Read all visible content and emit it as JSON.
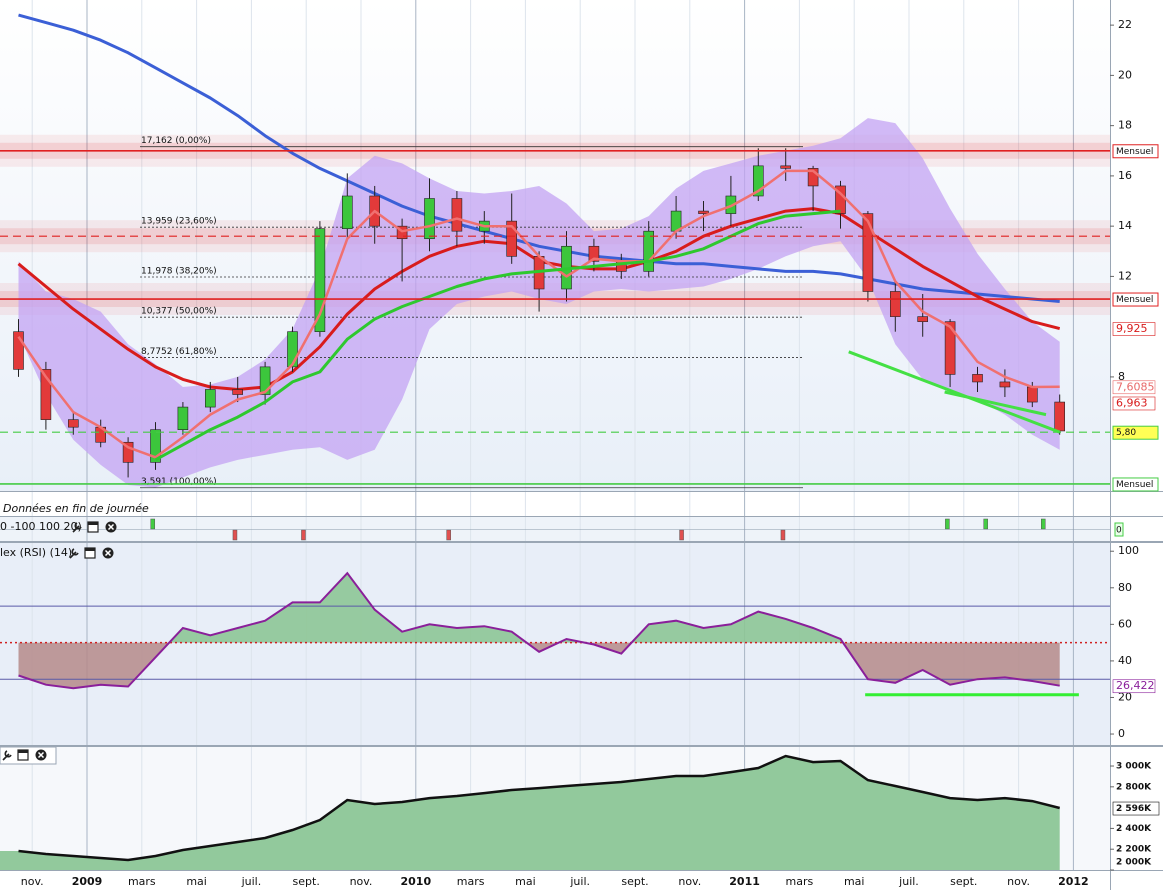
{
  "header": {
    "note": "Données en fin de journée"
  },
  "chart_data": [
    {
      "type": "candlestick",
      "open": [
        9.8,
        8.3,
        6.3,
        6.0,
        5.4,
        4.6,
        5.9,
        6.8,
        7.5,
        7.3,
        8.4,
        9.8,
        13.9,
        15.2,
        14.0,
        13.5,
        15.1,
        13.8,
        14.2,
        12.8,
        11.5,
        13.2,
        12.6,
        12.2,
        13.8,
        14.6,
        14.5,
        15.2,
        16.4,
        16.3,
        15.6,
        14.5,
        11.4,
        10.4,
        10.2,
        8.1,
        7.8,
        7.6,
        7.0,
        null
      ],
      "high": [
        10.3,
        8.6,
        6.6,
        6.3,
        5.6,
        6.2,
        7.0,
        7.8,
        8.0,
        8.6,
        10.0,
        14.2,
        16.1,
        15.6,
        14.3,
        15.9,
        15.4,
        14.6,
        15.3,
        13.0,
        13.8,
        13.5,
        12.9,
        14.2,
        15.2,
        15.0,
        16.0,
        17.1,
        17.1,
        16.4,
        15.8,
        14.6,
        11.8,
        11.3,
        10.3,
        8.4,
        8.3,
        7.8,
        7.3,
        null
      ],
      "low": [
        8.0,
        5.9,
        5.7,
        5.2,
        4.0,
        4.3,
        5.7,
        6.6,
        7.0,
        6.9,
        8.2,
        9.6,
        13.5,
        13.3,
        11.8,
        13.0,
        13.2,
        13.3,
        12.5,
        10.6,
        11.0,
        12.2,
        11.9,
        12.0,
        13.5,
        13.8,
        14.0,
        15.0,
        15.8,
        14.6,
        13.9,
        11.0,
        9.8,
        9.6,
        7.6,
        7.4,
        7.2,
        6.8,
        5.7,
        null
      ],
      "close": [
        8.3,
        6.3,
        6.0,
        5.4,
        4.6,
        5.9,
        6.8,
        7.5,
        7.3,
        8.4,
        9.8,
        13.9,
        15.2,
        14.0,
        13.5,
        15.1,
        13.8,
        14.2,
        12.8,
        11.5,
        13.2,
        12.6,
        12.2,
        13.8,
        14.6,
        14.5,
        15.2,
        16.4,
        16.3,
        15.6,
        14.5,
        11.4,
        10.4,
        10.2,
        8.1,
        7.8,
        7.6,
        7.0,
        5.85,
        null
      ],
      "up_color": "#3cc63c",
      "down_color": "#e23a3a",
      "ylim": [
        3.5,
        23
      ],
      "yticks": [
        8,
        12,
        14,
        16,
        18,
        20,
        22
      ],
      "band": {
        "color": "#c3a3f3",
        "upper": [
          12.6,
          11.4,
          11.1,
          10.6,
          9.3,
          8.5,
          7.6,
          7.7,
          8.0,
          8.7,
          9.9,
          12.3,
          15.9,
          16.8,
          16.5,
          15.9,
          15.4,
          15.3,
          15.4,
          15.6,
          14.9,
          13.8,
          13.9,
          14.4,
          15.5,
          16.2,
          16.5,
          16.8,
          17.0,
          17.2,
          17.5,
          18.3,
          18.1,
          16.7,
          14.7,
          12.9,
          11.5,
          10.2,
          9.4,
          null
        ],
        "lower": [
          9.7,
          7.3,
          5.5,
          4.5,
          3.7,
          3.6,
          4.0,
          4.4,
          4.7,
          4.9,
          5.1,
          5.2,
          4.7,
          5.1,
          7.1,
          9.9,
          10.9,
          11.2,
          11.4,
          11.1,
          10.9,
          11.4,
          11.5,
          11.4,
          11.5,
          11.6,
          11.9,
          12.3,
          12.8,
          13.2,
          13.4,
          11.9,
          9.3,
          7.9,
          7.5,
          7.1,
          6.5,
          5.7,
          5.1,
          null
        ]
      },
      "series": [
        {
          "color": "#3b5fd6",
          "width": 3,
          "values": [
            22.4,
            22.1,
            21.8,
            21.4,
            20.9,
            20.3,
            19.7,
            19.1,
            18.4,
            17.6,
            16.9,
            16.3,
            15.8,
            15.3,
            14.8,
            14.4,
            14.1,
            13.8,
            13.5,
            13.2,
            13.0,
            12.8,
            12.7,
            12.6,
            12.5,
            12.5,
            12.4,
            12.3,
            12.2,
            12.2,
            12.1,
            11.9,
            11.7,
            11.5,
            11.4,
            11.3,
            11.2,
            11.1,
            11.0,
            null
          ]
        },
        {
          "color": "#d81c1c",
          "width": 3,
          "values": [
            12.5,
            11.6,
            10.7,
            9.9,
            9.1,
            8.4,
            7.9,
            7.6,
            7.5,
            7.6,
            8.2,
            9.2,
            10.5,
            11.5,
            12.2,
            12.8,
            13.2,
            13.4,
            13.3,
            12.6,
            12.4,
            12.3,
            12.3,
            12.6,
            13.0,
            13.6,
            14.0,
            14.3,
            14.6,
            14.7,
            14.5,
            13.8,
            13.1,
            12.4,
            11.8,
            11.2,
            10.7,
            10.2,
            9.925,
            null
          ]
        },
        {
          "color": "#f07070",
          "width": 2.5,
          "values": [
            9.6,
            8.0,
            6.6,
            6.0,
            5.2,
            4.8,
            5.6,
            6.5,
            7.1,
            7.4,
            8.5,
            10.5,
            13.5,
            14.6,
            13.8,
            14.0,
            14.3,
            14.0,
            14.0,
            12.8,
            12.0,
            12.7,
            12.6,
            12.6,
            13.8,
            14.4,
            14.8,
            15.4,
            16.2,
            16.2,
            15.3,
            14.2,
            11.8,
            10.6,
            10.0,
            8.6,
            8.0,
            7.6,
            7.6085,
            null
          ]
        },
        {
          "color": "#2ec82e",
          "width": 3,
          "values": [
            null,
            null,
            null,
            null,
            null,
            4.7,
            5.3,
            5.9,
            6.4,
            7.0,
            7.8,
            8.2,
            9.5,
            10.3,
            10.8,
            11.2,
            11.6,
            11.9,
            12.1,
            12.2,
            12.3,
            12.4,
            12.5,
            12.6,
            12.8,
            13.1,
            13.6,
            14.1,
            14.4,
            14.5,
            14.6,
            null,
            null,
            null,
            null,
            null,
            null,
            null,
            null,
            null
          ]
        }
      ],
      "levels": [
        {
          "value": 17.162,
          "label": "17,162 (0,00%)"
        },
        {
          "value": 13.959,
          "label": "13,959 (23,60%)"
        },
        {
          "value": 11.978,
          "label": "11,978 (38,20%)"
        },
        {
          "value": 10.377,
          "label": "10,377 (50,00%)"
        },
        {
          "value": 8.7752,
          "label": "8,7752 (61,80%)"
        },
        {
          "value": 3.591,
          "label": "3,591 (100,00%)"
        }
      ],
      "level_lines": [
        {
          "value": 17.0,
          "label": "Mensuel",
          "color": "#e02020",
          "glow": true
        },
        {
          "value": 13.6,
          "color": "#e02020",
          "glow": true,
          "dashed": true
        },
        {
          "value": 11.1,
          "label": "Mensuel",
          "color": "#e02020",
          "glow": true
        },
        {
          "value": 5.8,
          "label": "5,80",
          "color": "#44cc44",
          "dashed": true,
          "label_fill": "#ffff55"
        },
        {
          "value": 3.74,
          "label": "Mensuel",
          "color": "#44cc44"
        }
      ],
      "price_flags": [
        {
          "value": 9.925,
          "label": "9,925",
          "color": "#d81c1c"
        },
        {
          "value": 7.6085,
          "label": "7,6085",
          "color": "#e86a6a"
        },
        {
          "value": 6.963,
          "label": "6,963",
          "color": "#d81c1c"
        }
      ],
      "trendlines": [
        {
          "color": "#44e044",
          "x": [
            30.3,
            38.0
          ],
          "y": [
            9.0,
            5.8
          ]
        },
        {
          "color": "#44e044",
          "x": [
            33.8,
            37.5
          ],
          "y": [
            7.4,
            6.5
          ]
        }
      ]
    },
    {
      "type": "signals",
      "title": "0 -100 100 20)",
      "buy": [
        4.9,
        33.9,
        35.3,
        37.4
      ],
      "sell": [
        7.9,
        10.4,
        15.7,
        24.2,
        27.9
      ],
      "buy_color": "#44cc44",
      "sell_color": "#e05050",
      "last_value": 0
    },
    {
      "type": "line",
      "title": "lex (RSI) (14)",
      "color": "#8a1f9a",
      "values": [
        32,
        27,
        25,
        27,
        26,
        42,
        58,
        54,
        58,
        62,
        72,
        72,
        88,
        68,
        56,
        60,
        58,
        59,
        56,
        45,
        52,
        49,
        44,
        60,
        62,
        58,
        60,
        67,
        63,
        58,
        52,
        30,
        28,
        35,
        27,
        30,
        31,
        29,
        26.422,
        null
      ],
      "last_label": "26,422",
      "ylim": [
        -6,
        104.5
      ],
      "yticks": [
        0,
        20,
        40,
        60,
        80,
        100
      ],
      "levels": [
        30,
        50,
        70
      ],
      "trendlines": [
        {
          "color": "#33ee33",
          "x": [
            30.9,
            38.7
          ],
          "y": [
            21.5,
            21.5
          ]
        }
      ]
    },
    {
      "type": "area",
      "color": "#111111",
      "fill": "#92c99c",
      "categories": [
        null,
        "nov.",
        null,
        "2009",
        null,
        "mars",
        null,
        "mai",
        null,
        "juil.",
        null,
        "sept.",
        null,
        "nov.",
        null,
        "2010",
        null,
        "mars",
        null,
        "mai",
        null,
        "juil.",
        null,
        "sept.",
        null,
        "nov.",
        null,
        "2011",
        null,
        "mars",
        null,
        "mai",
        null,
        "juil.",
        null,
        "sept.",
        null,
        "nov.",
        null,
        "2012"
      ],
      "values": [
        2183000,
        2154000,
        2135000,
        2115000,
        2096000,
        2135000,
        2192000,
        2231000,
        2269000,
        2308000,
        2385000,
        2481000,
        2673000,
        2635000,
        2654000,
        2692000,
        2712000,
        2740000,
        2769000,
        2788000,
        2808000,
        2827000,
        2846000,
        2875000,
        2904000,
        2904000,
        2942000,
        2981000,
        3096000,
        3038000,
        3048000,
        2865000,
        2808000,
        2750000,
        2692000,
        2673000,
        2692000,
        2663000,
        2596000,
        null
      ],
      "last_label": "2 596K",
      "ylim": [
        2000000,
        3183000
      ],
      "yticks": [
        {
          "value": 2000000,
          "label": "2 000K"
        },
        {
          "value": 2200000,
          "label": "2 200K"
        },
        {
          "value": 2400000,
          "label": "2 400K"
        },
        {
          "value": 2800000,
          "label": "2 800K"
        },
        {
          "value": 3000000,
          "label": "3 000K"
        }
      ]
    }
  ]
}
